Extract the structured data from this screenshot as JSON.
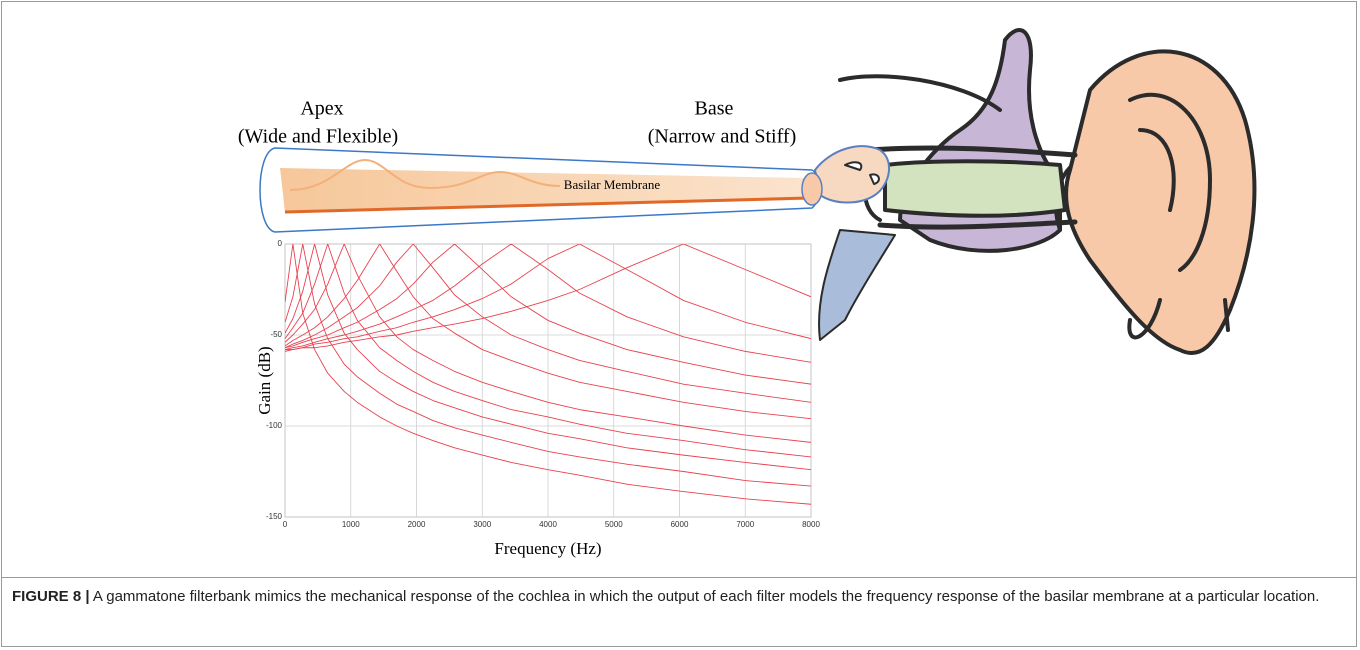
{
  "figure": {
    "apex": "Apex",
    "apex_note": "(Wide and Flexible)",
    "base": "Base",
    "base_note": "(Narrow and Stiff)",
    "membrane": "Basilar Membrane"
  },
  "caption": {
    "label": "FIGURE 8 |",
    "text": "A gammatone filterbank mimics the mechanical response of the cochlea in which the output of each filter models the frequency response of the basilar membrane at a particular location."
  },
  "chart_data": {
    "type": "line",
    "xlabel": "Frequency (Hz)",
    "ylabel": "Gain (dB)",
    "x": [
      0,
      120,
      270,
      450,
      650,
      900,
      1100,
      1440,
      1700,
      1950,
      2250,
      2580,
      3000,
      3440,
      4000,
      4480,
      5200,
      6060,
      7000,
      8000
    ],
    "xlim": [
      0,
      8000
    ],
    "ylim": [
      -150,
      0
    ],
    "xticks": [
      0,
      1000,
      2000,
      3000,
      4000,
      5000,
      6000,
      7000,
      8000
    ],
    "yticks": [
      -150,
      -100,
      -50,
      0
    ],
    "grid": true,
    "series": [
      {
        "color": "#e8424f",
        "values": [
          -32,
          0,
          -38,
          -58,
          -71,
          -81,
          -87,
          -95,
          -100,
          -104,
          -108,
          -112,
          -116,
          -120,
          -124,
          -127,
          -132,
          -136,
          -140,
          -143
        ]
      },
      {
        "color": "#e8424f",
        "values": [
          -43,
          -29,
          0,
          -33,
          -52,
          -66,
          -73,
          -82,
          -88,
          -92,
          -97,
          -101,
          -105,
          -109,
          -114,
          -117,
          -121,
          -125,
          -130,
          -133
        ]
      },
      {
        "color": "#e8424f",
        "values": [
          -49,
          -41,
          -26,
          0,
          -28,
          -49,
          -58,
          -70,
          -76,
          -81,
          -86,
          -90,
          -95,
          -99,
          -104,
          -107,
          -112,
          -116,
          -120,
          -124
        ]
      },
      {
        "color": "#e8424f",
        "values": [
          -52,
          -46,
          -38,
          -22,
          0,
          -27,
          -42,
          -57,
          -64,
          -70,
          -76,
          -81,
          -86,
          -91,
          -95,
          -99,
          -104,
          -108,
          -113,
          -117
        ]
      },
      {
        "color": "#e8424f",
        "values": [
          -54,
          -50,
          -44,
          -36,
          -22,
          0,
          -17,
          -40,
          -51,
          -58,
          -64,
          -70,
          -76,
          -81,
          -87,
          -91,
          -95,
          -100,
          -105,
          -109
        ]
      },
      {
        "color": "#e8424f",
        "values": [
          -56,
          -53,
          -50,
          -46,
          -40,
          -30,
          -20,
          0,
          -15,
          -29,
          -41,
          -49,
          -58,
          -64,
          -71,
          -76,
          -81,
          -87,
          -92,
          -96
        ]
      },
      {
        "color": "#e8424f",
        "values": [
          -57,
          -55,
          -53,
          -50,
          -46,
          -40,
          -35,
          -23,
          -10,
          0,
          -13,
          -28,
          -40,
          -50,
          -58,
          -64,
          -70,
          -77,
          -82,
          -87
        ]
      },
      {
        "color": "#e8424f",
        "values": [
          -57,
          -56,
          -54,
          -52,
          -50,
          -46,
          -43,
          -36,
          -30,
          -22,
          -10,
          0,
          -14,
          -29,
          -42,
          -49,
          -58,
          -65,
          -72,
          -77
        ]
      },
      {
        "color": "#e8424f",
        "values": [
          -58,
          -57,
          -56,
          -54,
          -52,
          -50,
          -48,
          -44,
          -40,
          -36,
          -31,
          -23,
          -11,
          0,
          -14,
          -27,
          -40,
          -51,
          -59,
          -65
        ]
      },
      {
        "color": "#e8424f",
        "values": [
          -58,
          -58,
          -57,
          -55,
          -54,
          -52,
          -51,
          -48,
          -46,
          -43,
          -40,
          -36,
          -30,
          -22,
          -8,
          0,
          -14,
          -31,
          -43,
          -52
        ]
      },
      {
        "color": "#e8424f",
        "values": [
          -59,
          -58,
          -57,
          -57,
          -56,
          -54,
          -53,
          -51,
          -50,
          -48,
          -46,
          -44,
          -41,
          -37,
          -31,
          -25,
          -13,
          0,
          -14,
          -29
        ]
      }
    ]
  }
}
